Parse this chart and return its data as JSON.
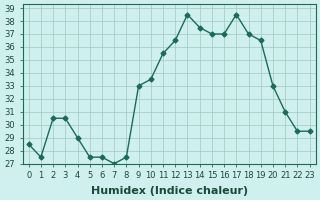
{
  "x": [
    0,
    1,
    2,
    3,
    4,
    5,
    6,
    7,
    8,
    9,
    10,
    11,
    12,
    13,
    14,
    15,
    16,
    17,
    18,
    19,
    20,
    21,
    22,
    23
  ],
  "y": [
    28.5,
    27.5,
    30.5,
    30.5,
    29.0,
    27.5,
    27.5,
    27.0,
    27.5,
    33.0,
    33.5,
    35.5,
    36.5,
    38.5,
    37.5,
    37.0,
    37.0,
    38.5,
    37.0,
    36.5,
    33.0,
    31.0,
    29.5,
    29.5
  ],
  "xlabel": "Humidex (Indice chaleur)",
  "ylim": [
    27,
    39
  ],
  "xlim": [
    -0.5,
    23.5
  ],
  "yticks": [
    27,
    28,
    29,
    30,
    31,
    32,
    33,
    34,
    35,
    36,
    37,
    38,
    39
  ],
  "xticks": [
    0,
    1,
    2,
    3,
    4,
    5,
    6,
    7,
    8,
    9,
    10,
    11,
    12,
    13,
    14,
    15,
    16,
    17,
    18,
    19,
    20,
    21,
    22,
    23
  ],
  "xtick_labels": [
    "0",
    "1",
    "2",
    "3",
    "4",
    "5",
    "6",
    "7",
    "8",
    "9",
    "10",
    "11",
    "12",
    "13",
    "14",
    "15",
    "16",
    "17",
    "18",
    "19",
    "20",
    "21",
    "22",
    "23"
  ],
  "line_color": "#1a6b5a",
  "marker_color": "#1a6b5a",
  "bg_color": "#cff0ee",
  "grid_color": "#a0c8c4",
  "axes_bg": "#cff0ee",
  "tick_fontsize": 6,
  "xlabel_fontsize": 8
}
